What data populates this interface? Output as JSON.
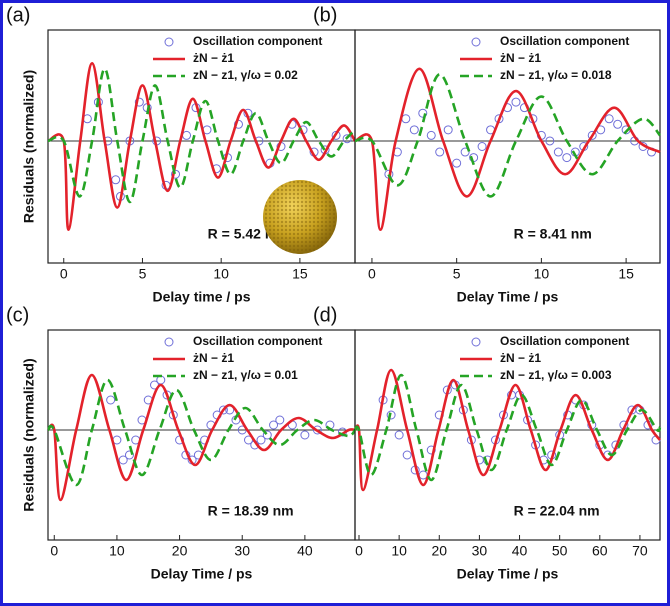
{
  "chart_data": [
    {
      "type": "line",
      "panel_label": "(a)",
      "xlabel": "Delay time / ps",
      "ylabel": "Residuals (normalized)",
      "annotation": "R = 5.42 nm",
      "xlim": [
        -1,
        18.5
      ],
      "xticks": [
        0,
        5,
        10,
        15
      ],
      "ylim": [
        -1.1,
        1.0
      ],
      "series": [
        {
          "name": "Oscillation component",
          "color": "#6f6fd8",
          "mode": "markers",
          "x": [
            1.5,
            2.2,
            2.8,
            3.3,
            3.6,
            4.2,
            4.8,
            5.3,
            5.9,
            6.5,
            7.1,
            7.8,
            8.4,
            9.1,
            9.7,
            10.4,
            11.1,
            11.7,
            12.4,
            13.1,
            13.8,
            14.5,
            15.2,
            15.9,
            16.6,
            17.3,
            18
          ],
          "values": [
            0.2,
            0.35,
            0,
            -0.35,
            -0.5,
            0,
            0.35,
            0.3,
            0,
            -0.4,
            -0.3,
            0.05,
            0.3,
            0.1,
            -0.25,
            -0.15,
            0.15,
            0.25,
            0,
            -0.2,
            -0.05,
            0.15,
            0.1,
            -0.1,
            -0.08,
            0.05,
            0.02
          ]
        },
        {
          "name": "żN − ż1",
          "color": "#e3222b",
          "mode": "solid",
          "x": [
            -1,
            0,
            0.3,
            1.05,
            1.8,
            2.6,
            3.4,
            4.2,
            5,
            5.8,
            6.6,
            7.4,
            8.2,
            9,
            9.8,
            10.6,
            11.4,
            12.2,
            13,
            13.8,
            14.6,
            15.4,
            16.2,
            17,
            17.8,
            18.5
          ],
          "values": [
            0,
            0,
            -0.8,
            0,
            0.7,
            0,
            -0.6,
            0,
            0.5,
            0,
            -0.45,
            0,
            0.38,
            0,
            -0.33,
            0,
            0.28,
            0,
            -0.24,
            0,
            0.2,
            0,
            -0.17,
            0,
            0.14,
            0
          ]
        },
        {
          "name": "zN − z1, γ/ω = 0.02",
          "color": "#25a425",
          "mode": "dashed",
          "x": [
            -1,
            0,
            1,
            1.8,
            2.6,
            3.4,
            4.2,
            5,
            5.8,
            6.6,
            7.4,
            8.2,
            9,
            9.8,
            10.6,
            11.4,
            12.2,
            13,
            13.8,
            14.6,
            15.4,
            16.2,
            17,
            17.8,
            18.5
          ],
          "values": [
            0,
            0,
            -0.5,
            0,
            0.65,
            0,
            -0.55,
            0,
            0.5,
            0,
            -0.42,
            0,
            0.36,
            0,
            -0.3,
            0,
            0.25,
            0,
            -0.2,
            0,
            0.17,
            0,
            -0.14,
            0,
            0.1
          ]
        }
      ]
    },
    {
      "type": "line",
      "panel_label": "(b)",
      "xlabel": "Delay Time / ps",
      "annotation": "R = 8.41 nm",
      "xlim": [
        -1,
        17
      ],
      "xticks": [
        0,
        5,
        10,
        15
      ],
      "ylim": [
        -1.1,
        1.0
      ],
      "series": [
        {
          "name": "Oscillation component",
          "color": "#6f6fd8",
          "mode": "markers",
          "x": [
            1,
            1.5,
            2,
            2.5,
            3,
            3.5,
            4,
            4.5,
            5,
            5.5,
            6,
            6.5,
            7,
            7.5,
            8,
            8.5,
            9,
            9.5,
            10,
            10.5,
            11,
            11.5,
            12,
            12.5,
            13,
            13.5,
            14,
            14.5,
            15,
            15.5,
            16,
            16.5
          ],
          "values": [
            -0.3,
            -0.1,
            0.2,
            0.1,
            0.25,
            0.05,
            -0.1,
            0.1,
            -0.2,
            -0.1,
            -0.15,
            -0.05,
            0.1,
            0.2,
            0.3,
            0.35,
            0.3,
            0.2,
            0.05,
            0,
            -0.1,
            -0.15,
            -0.1,
            -0.05,
            0.05,
            0.1,
            0.2,
            0.15,
            0.1,
            0,
            -0.05,
            -0.1
          ]
        },
        {
          "name": "żN − ż1",
          "color": "#e3222b",
          "mode": "solid",
          "x": [
            -1,
            0,
            0.5,
            1.4,
            2.8,
            4.2,
            5.6,
            7,
            8.5,
            10,
            11.4,
            12.8,
            14.3,
            15.7,
            17
          ],
          "values": [
            0,
            0,
            -0.8,
            0,
            0.65,
            0,
            -0.5,
            0,
            0.45,
            0,
            -0.3,
            0,
            0.3,
            0,
            -0.1
          ]
        },
        {
          "name": "zN − z1, γ/ω = 0.018",
          "color": "#25a425",
          "mode": "dashed",
          "x": [
            -1,
            0,
            1.5,
            2.7,
            4,
            5.5,
            7,
            8.5,
            10,
            11.5,
            13,
            14.5,
            16,
            17
          ],
          "values": [
            0,
            0,
            -0.4,
            0,
            0.6,
            0,
            -0.5,
            0,
            0.4,
            0,
            -0.3,
            0,
            0.2,
            0.05
          ]
        }
      ]
    },
    {
      "type": "line",
      "panel_label": "(c)",
      "xlabel": "Delay Time / ps",
      "ylabel": "Residuals (normalized)",
      "annotation": "R = 18.39 nm",
      "xlim": [
        -1,
        48
      ],
      "xticks": [
        0,
        10,
        20,
        30,
        40
      ],
      "ylim": [
        -1.1,
        1.0
      ],
      "series": [
        {
          "name": "Oscillation component",
          "color": "#6f6fd8",
          "mode": "markers",
          "x": [
            9,
            10,
            11,
            12,
            13,
            14,
            15,
            16,
            17,
            18,
            19,
            20,
            21,
            22,
            23,
            24,
            25,
            26,
            27,
            28,
            29,
            30,
            31,
            32,
            33,
            34,
            35,
            36,
            38,
            40,
            42,
            44,
            46
          ],
          "values": [
            0.3,
            -0.1,
            -0.3,
            -0.25,
            -0.1,
            0.1,
            0.3,
            0.45,
            0.5,
            0.35,
            0.15,
            -0.1,
            -0.25,
            -0.3,
            -0.25,
            -0.1,
            0.05,
            0.15,
            0.2,
            0.2,
            0.1,
            0,
            -0.1,
            -0.15,
            -0.1,
            -0.05,
            0.05,
            0.1,
            0.05,
            -0.05,
            0,
            0.05,
            -0.02
          ]
        },
        {
          "name": "żN − ż1",
          "color": "#e3222b",
          "mode": "solid",
          "x": [
            -1,
            0,
            1,
            3.5,
            6,
            8.8,
            11.5,
            14.2,
            17,
            19.8,
            22.5,
            25.2,
            28,
            30.8,
            33.5,
            36.2,
            39,
            41.8,
            44.5,
            47,
            48
          ],
          "values": [
            0,
            0,
            -0.7,
            0,
            0.55,
            0,
            -0.5,
            0,
            0.45,
            0,
            -0.35,
            0,
            0.25,
            0,
            -0.2,
            0,
            0.12,
            0,
            -0.08,
            0,
            0
          ]
        },
        {
          "name": "zN − z1, γ/ω = 0.01",
          "color": "#25a425",
          "mode": "dashed",
          "x": [
            -1,
            0,
            3.5,
            6,
            8.5,
            11.3,
            14,
            16.8,
            19.5,
            22.3,
            25,
            27.8,
            30.5,
            33.3,
            36,
            38.8,
            41.5,
            44.3,
            47,
            48
          ],
          "values": [
            0,
            0,
            -0.55,
            0,
            0.5,
            0,
            -0.45,
            0,
            0.4,
            0,
            -0.3,
            0,
            0.22,
            0,
            -0.15,
            0,
            0.1,
            0,
            -0.06,
            0
          ]
        }
      ]
    },
    {
      "type": "line",
      "panel_label": "(d)",
      "xlabel": "Delay Time / ps",
      "annotation": "R = 22.04 nm",
      "xlim": [
        -1,
        75
      ],
      "xticks": [
        0,
        10,
        20,
        30,
        40,
        50,
        60,
        70
      ],
      "ylim": [
        -1.1,
        1.0
      ],
      "series": [
        {
          "name": "Oscillation component",
          "color": "#6f6fd8",
          "mode": "markers",
          "x": [
            6,
            8,
            10,
            12,
            14,
            16,
            18,
            20,
            22,
            24,
            26,
            28,
            30,
            32,
            34,
            36,
            38,
            40,
            42,
            44,
            46,
            48,
            50,
            52,
            54,
            56,
            58,
            60,
            62,
            64,
            66,
            68,
            70,
            72,
            74
          ],
          "values": [
            0.3,
            0.15,
            -0.05,
            -0.25,
            -0.4,
            -0.45,
            -0.2,
            0.15,
            0.4,
            0.45,
            0.2,
            -0.1,
            -0.3,
            -0.3,
            -0.1,
            0.15,
            0.35,
            0.35,
            0.1,
            -0.15,
            -0.3,
            -0.25,
            -0.05,
            0.15,
            0.3,
            0.25,
            0.05,
            -0.15,
            -0.25,
            -0.15,
            0.05,
            0.2,
            0.2,
            0.05,
            -0.1
          ]
        },
        {
          "name": "żN − ż1",
          "color": "#e3222b",
          "mode": "solid",
          "x": [
            -1,
            0,
            1,
            4.5,
            8,
            12,
            16,
            19.8,
            23.5,
            27.2,
            31,
            35,
            39,
            42.8,
            46.5,
            50.2,
            54,
            58,
            62,
            65.8,
            69.5,
            73,
            75
          ],
          "values": [
            0,
            0,
            -0.6,
            0,
            0.6,
            0,
            -0.55,
            0,
            0.5,
            0,
            -0.45,
            0,
            0.45,
            0,
            -0.4,
            0,
            0.35,
            0,
            -0.3,
            0,
            0.25,
            0,
            -0.1
          ]
        },
        {
          "name": "zN − z1, γ/ω = 0.003",
          "color": "#25a425",
          "mode": "dashed",
          "x": [
            -1,
            0,
            3,
            6.8,
            10.5,
            14.3,
            18,
            21.8,
            25.5,
            29.3,
            33,
            36.8,
            40.5,
            44.3,
            48,
            51.8,
            55.5,
            59.3,
            63,
            66.8,
            70.5,
            74.3,
            75
          ],
          "values": [
            0,
            0,
            -0.45,
            0,
            0.55,
            0,
            -0.5,
            0,
            0.45,
            0,
            -0.4,
            0,
            0.35,
            0,
            -0.35,
            0,
            0.3,
            0,
            -0.25,
            0,
            0.2,
            0,
            0.03
          ]
        }
      ]
    }
  ]
}
